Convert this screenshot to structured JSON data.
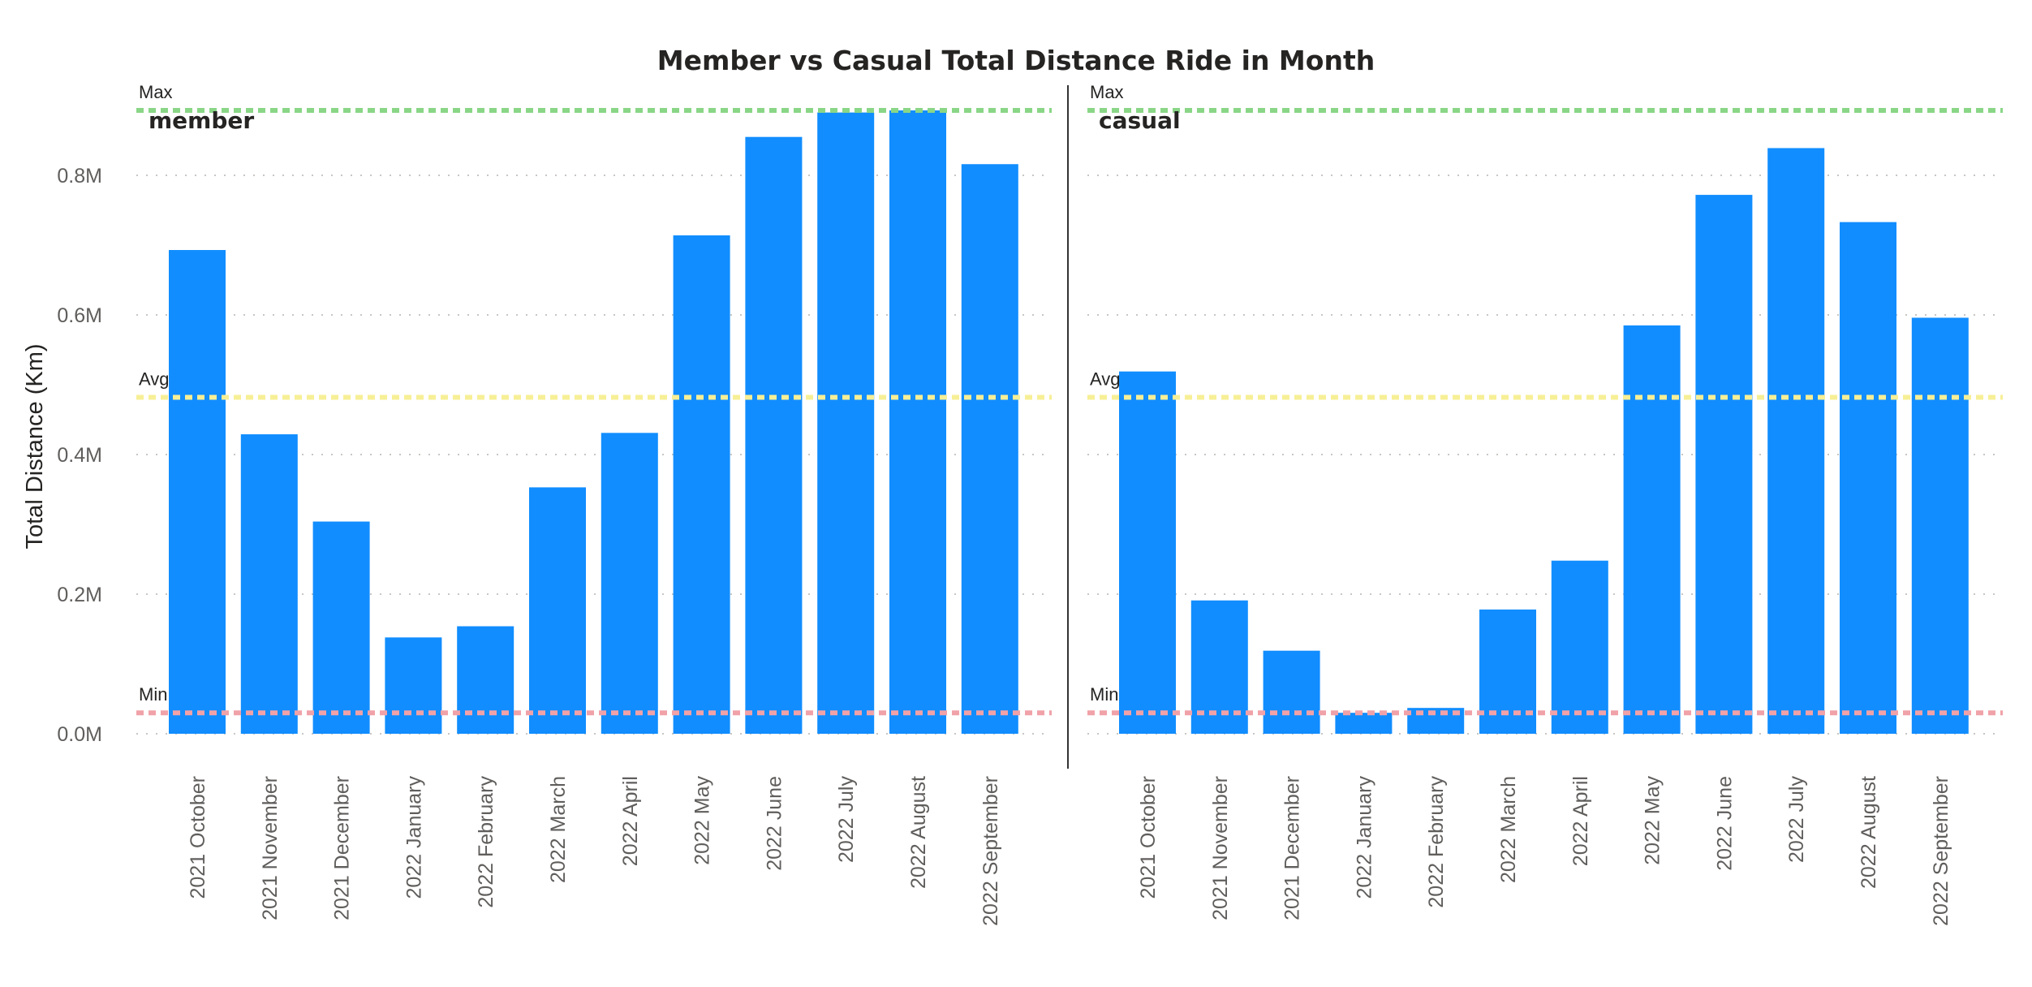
{
  "chart_data": {
    "type": "bar",
    "title": "Member vs Casual Total Distance Ride in Month",
    "ylabel": "Total Distance (Km)",
    "xlabel": "",
    "ylim": [
      0,
      0.9
    ],
    "y_unit": "M",
    "y_ticks": [
      0.0,
      0.2,
      0.4,
      0.6,
      0.8
    ],
    "y_tick_labels": [
      "0.0M",
      "0.2M",
      "0.4M",
      "0.6M",
      "0.8M"
    ],
    "grid": true,
    "categories": [
      "2021 October",
      "2021 November",
      "2021 December",
      "2022 January",
      "2022 February",
      "2022 March",
      "2022 April",
      "2022 May",
      "2022 June",
      "2022 July",
      "2022 August",
      "2022 September"
    ],
    "bar_color": "#118DFF",
    "reference_lines": [
      {
        "label": "Max",
        "value": 0.893,
        "color": "#8ad687"
      },
      {
        "label": "Avg",
        "value": 0.482,
        "color": "#f7ef96"
      },
      {
        "label": "Min",
        "value": 0.03,
        "color": "#f0a2a8"
      }
    ],
    "panels": [
      {
        "name": "member",
        "values": [
          0.693,
          0.429,
          0.304,
          0.138,
          0.154,
          0.353,
          0.431,
          0.714,
          0.855,
          0.89,
          0.893,
          0.816
        ]
      },
      {
        "name": "casual",
        "values": [
          0.519,
          0.191,
          0.119,
          0.03,
          0.037,
          0.178,
          0.248,
          0.585,
          0.772,
          0.839,
          0.733,
          0.596
        ]
      }
    ]
  }
}
